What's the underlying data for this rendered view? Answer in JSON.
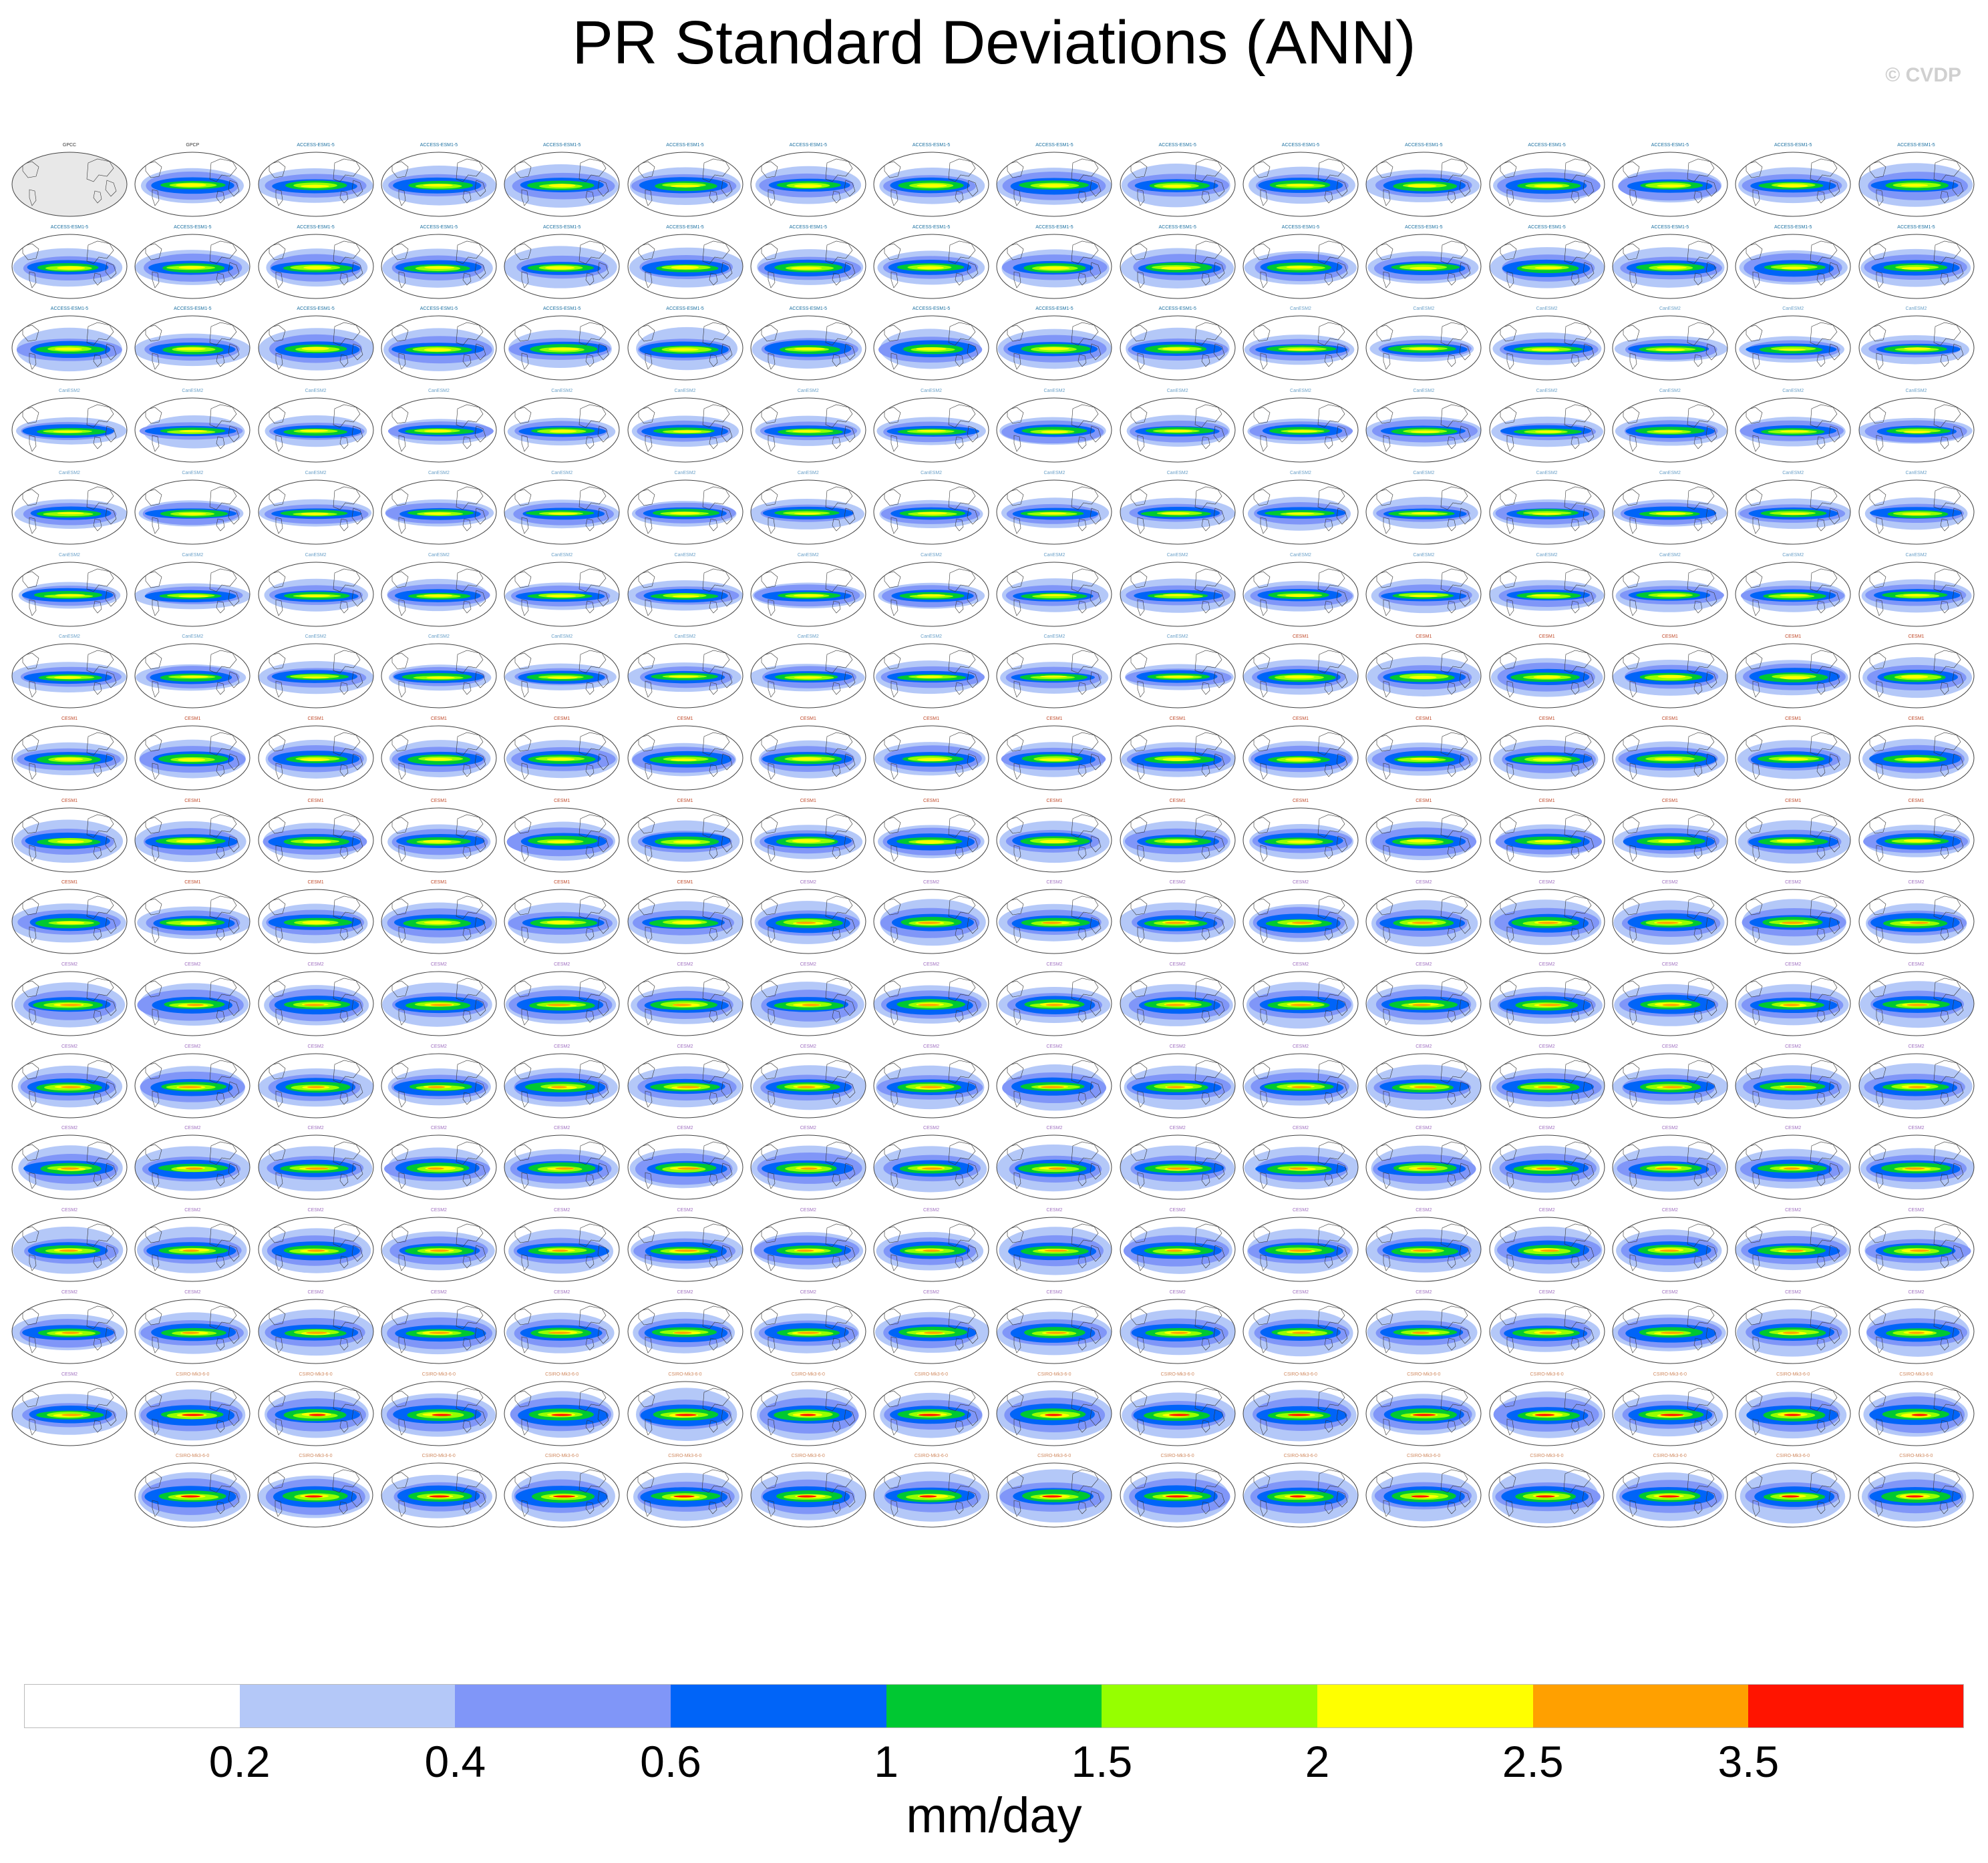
{
  "title": "PR Standard Deviations (ANN)",
  "credit": "© CVDP",
  "chart_data": {
    "type": "heatmap",
    "title": "PR Standard Deviations (ANN)",
    "description_of_panels": "small-multiples of global annual precipitation standard deviation maps",
    "panel_rows": 17,
    "panel_cols": 16,
    "last_row_panels": 15,
    "panel_count": 271,
    "units": "mm/day",
    "colorbar": {
      "tick_labels": [
        "0.2",
        "0.4",
        "0.6",
        "1",
        "1.5",
        "2",
        "2.5",
        "3.5"
      ],
      "colors": [
        "#ffffff",
        "#b4c8f8",
        "#8096f8",
        "#0064f8",
        "#00c832",
        "#96ff00",
        "#ffff00",
        "#ffa000",
        "#ff1400"
      ]
    },
    "panel_groups": [
      {
        "label": "GPCC",
        "count": 1,
        "title_color": "#333333"
      },
      {
        "label": "GPCP",
        "count": 1,
        "title_color": "#333333"
      },
      {
        "label": "ACCESS-ESM1-5",
        "count": 40,
        "title_color": "#1a6fa0"
      },
      {
        "label": "CanESM2",
        "count": 64,
        "title_color": "#6aa0c8"
      },
      {
        "label": "CESM1",
        "count": 44,
        "title_color": "#c04a2a"
      },
      {
        "label": "CESM2",
        "count": 91,
        "title_color": "#a070c0"
      },
      {
        "label": "CSIRO-Mk3-6-0",
        "count": 30,
        "title_color": "#d08a60"
      }
    ]
  }
}
